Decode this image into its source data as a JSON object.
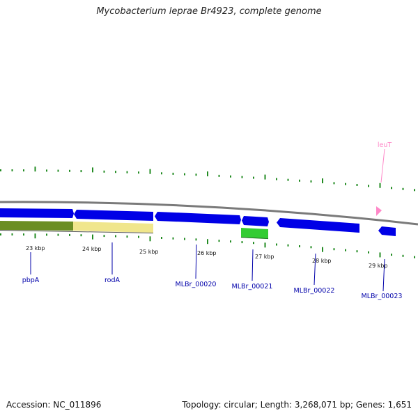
{
  "title": "Mycobacterium leprae Br4923, complete genome",
  "footer": {
    "accession": "Accession: NC_011896",
    "topology": "Topology: circular; Length: 3,268,071 bp; Genes: 1,651"
  },
  "colors": {
    "cds": "#0000e6",
    "gene_green_dark": "#6b8e23",
    "gene_yellow": "#f0e68c",
    "gene_green": "#33cc33",
    "trna": "#ff88c8",
    "backbone": "#7a7a7a",
    "ticks": "#228b22",
    "label": "#0000aa"
  },
  "scale_labels": [
    "23 kbp",
    "24 kbp",
    "25 kbp",
    "26 kbp",
    "27 kbp",
    "28 kbp",
    "29 kbp"
  ],
  "genes": [
    {
      "label": "pbpA"
    },
    {
      "label": "rodA"
    },
    {
      "label": "MLBr_00020"
    },
    {
      "label": "MLBr_00021"
    },
    {
      "label": "MLBr_00022"
    },
    {
      "label": "MLBr_00023"
    },
    {
      "label": "leuT"
    }
  ]
}
